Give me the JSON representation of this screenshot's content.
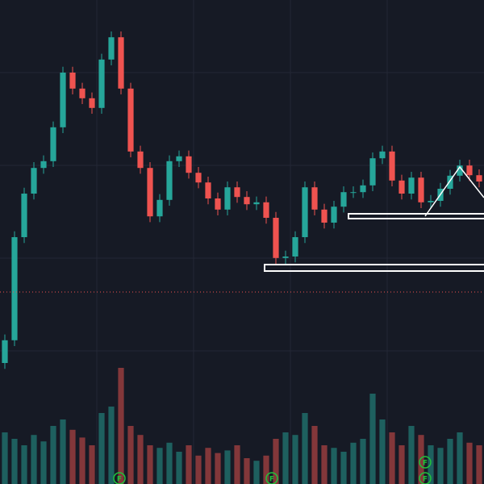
{
  "chart_data": {
    "type": "candlestick",
    "open": [
      25,
      29.7,
      51,
      60,
      65.3,
      66.7,
      73.7,
      85,
      81.7,
      79.7,
      77.7,
      87.7,
      92.3,
      81.7,
      68.7,
      65.3,
      55.3,
      58.7,
      66.7,
      67.7,
      64.3,
      62.3,
      59,
      56.7,
      61.3,
      59.3,
      57.8,
      58.2,
      55,
      46.7,
      47,
      51,
      61.3,
      56.7,
      54,
      57.3,
      60.3,
      60.3,
      61.7,
      67.3,
      68.7,
      62.7,
      60,
      63.3,
      58.2,
      58.5,
      61,
      63.7,
      65.8,
      63.8
    ],
    "high": [
      30.9,
      52.2,
      61.2,
      66.5,
      67.9,
      74.9,
      86.2,
      86.2,
      82.9,
      80.9,
      88.9,
      93.5,
      93.5,
      82.9,
      69.9,
      66.5,
      59.9,
      67.9,
      68.9,
      68.9,
      65.5,
      63.5,
      60.2,
      62.5,
      62.5,
      60.5,
      59.4,
      59.4,
      56.2,
      48.2,
      52.2,
      62.5,
      62.5,
      57.9,
      58.5,
      61.5,
      61.5,
      62.9,
      68.5,
      69.9,
      69.9,
      63.9,
      64.5,
      64.5,
      59.7,
      62.2,
      64.9,
      67,
      67,
      65
    ],
    "low": [
      23.8,
      28.5,
      49.8,
      58.8,
      64.1,
      65.5,
      72.5,
      80.5,
      78.5,
      76.5,
      76.5,
      86.5,
      80.5,
      67.5,
      64.1,
      54.1,
      54.1,
      57.5,
      65.5,
      63.1,
      61.1,
      57.8,
      55.5,
      55.5,
      58.1,
      56.6,
      56.6,
      53.8,
      45.5,
      45.5,
      45.8,
      49.8,
      55.5,
      52.8,
      52.8,
      56.1,
      59.1,
      59.1,
      60.5,
      66.1,
      61.5,
      58.8,
      58.8,
      57,
      57,
      57.3,
      59.8,
      62.5,
      62.6,
      61.3
    ],
    "close": [
      29.7,
      51,
      60,
      65.3,
      66.7,
      73.7,
      85,
      81.7,
      79.7,
      77.7,
      87.7,
      92.3,
      81.7,
      68.7,
      65.3,
      55.3,
      58.7,
      66.7,
      67.7,
      64.3,
      62.3,
      59,
      56.7,
      61.3,
      59.3,
      57.8,
      58.2,
      55,
      46.7,
      47,
      51,
      61.3,
      56.7,
      54,
      57.3,
      60.3,
      60.3,
      61.7,
      67.3,
      68.7,
      62.7,
      60,
      63.3,
      58.2,
      58.5,
      61,
      63.7,
      65.8,
      63.8,
      62.5
    ],
    "volume": [
      40,
      35,
      30,
      38,
      33,
      45,
      50,
      42,
      36,
      30,
      55,
      60,
      90,
      45,
      38,
      30,
      28,
      32,
      25,
      30,
      22,
      28,
      24,
      26,
      30,
      20,
      18,
      22,
      35,
      40,
      38,
      55,
      45,
      30,
      28,
      25,
      32,
      35,
      70,
      50,
      40,
      30,
      45,
      38,
      30,
      28,
      35,
      40,
      32,
      30
    ],
    "ylim": [
      0,
      100
    ],
    "volume_ylim": [
      0,
      100
    ],
    "up_color": "#26a69a",
    "down_color": "#ef5350",
    "markers": [
      "F",
      "F",
      "F",
      "F"
    ]
  }
}
